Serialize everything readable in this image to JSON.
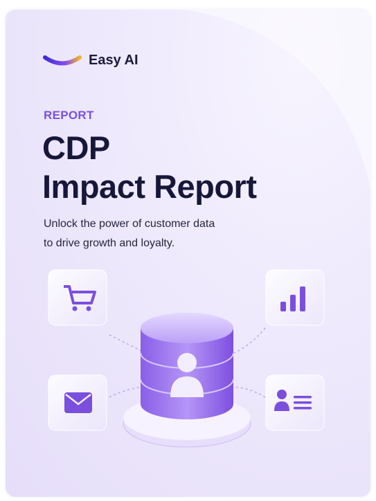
{
  "brand": {
    "name": "Easy AI"
  },
  "cover": {
    "eyebrow": "REPORT",
    "title_lines": [
      "CDP",
      "Impact Report"
    ],
    "subtitle_lines": [
      "Unlock the power of customer data",
      "to drive growth and loyalty."
    ]
  }
}
